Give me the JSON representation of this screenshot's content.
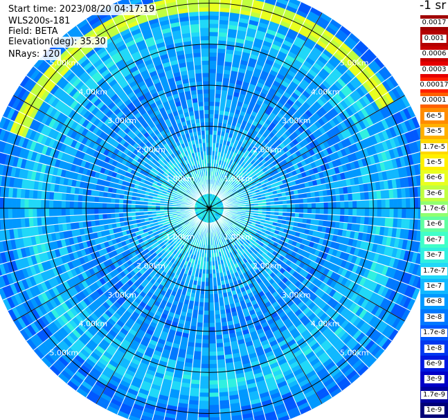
{
  "info": {
    "start_time": "Start time: 2023/08/20 04:17:19",
    "device": "WLS200s-181",
    "field": "Field: BETA",
    "elevation": "Elevation(deg): 35.30",
    "nrays": "NRays: 120"
  },
  "colorbar": {
    "title": "-1 sr",
    "entries": [
      {
        "label": "0.0017",
        "color": "#a00000"
      },
      {
        "label": "0.001",
        "color": "#b40000"
      },
      {
        "label": "0.0006",
        "color": "#c80000"
      },
      {
        "label": "0.0003",
        "color": "#e60000"
      },
      {
        "label": "0.00017",
        "color": "#ff2000"
      },
      {
        "label": "0.0001",
        "color": "#ff6000"
      },
      {
        "label": "6e-5",
        "color": "#ff8c00"
      },
      {
        "label": "3e-5",
        "color": "#ffb000"
      },
      {
        "label": "1.7e-5",
        "color": "#ffd800"
      },
      {
        "label": "1e-5",
        "color": "#fff000"
      },
      {
        "label": "6e-6",
        "color": "#e8ff20"
      },
      {
        "label": "3e-6",
        "color": "#c0ff40"
      },
      {
        "label": "1.7e-6",
        "color": "#90ff70"
      },
      {
        "label": "1e-6",
        "color": "#60ffa0"
      },
      {
        "label": "6e-7",
        "color": "#40ffc8"
      },
      {
        "label": "3e-7",
        "color": "#30f0e0"
      },
      {
        "label": "1.7e-7",
        "color": "#20d8f8"
      },
      {
        "label": "1e-7",
        "color": "#10b8ff"
      },
      {
        "label": "6e-8",
        "color": "#0098ff"
      },
      {
        "label": "3e-8",
        "color": "#0078ff"
      },
      {
        "label": "1.7e-8",
        "color": "#0058ff"
      },
      {
        "label": "1e-8",
        "color": "#0038f0"
      },
      {
        "label": "6e-9",
        "color": "#0018e0"
      },
      {
        "label": "3e-9",
        "color": "#0000c8"
      },
      {
        "label": "1.7e-9",
        "color": "#0000a0"
      },
      {
        "label": "1e-9",
        "color": "#000078"
      }
    ]
  },
  "chart_data": {
    "type": "heatmap",
    "projection": "polar-ppi",
    "field": "BETA",
    "elevation_deg": 35.3,
    "nrays": 120,
    "range_max_km": 5.5,
    "range_rings": [
      {
        "r": 1,
        "label": "1.00km"
      },
      {
        "r": 2,
        "label": "2.00km"
      },
      {
        "r": 3,
        "label": "3.00km"
      },
      {
        "r": 4,
        "label": "4.00km"
      },
      {
        "r": 5,
        "label": "5.00km"
      }
    ],
    "azimuth_lines_deg": [
      0,
      30,
      60,
      90,
      120,
      150,
      180,
      210,
      240,
      270,
      300,
      330
    ],
    "radial_profile": [
      {
        "r": 0.0,
        "level": 15.5
      },
      {
        "r": 1.0,
        "level": 16.0
      },
      {
        "r": 2.0,
        "level": 17.8
      },
      {
        "r": 3.0,
        "level": 18.3
      },
      {
        "r": 3.8,
        "level": 17.6
      },
      {
        "r": 4.4,
        "level": 16.3
      },
      {
        "r": 5.0,
        "level": 18.5
      },
      {
        "r": 5.5,
        "level": 19.0
      }
    ],
    "bright_arc": {
      "az_from_deg": 290,
      "az_to_deg": 60,
      "r_from_km": 4.85,
      "r_to_km": 5.15,
      "level": 10.5
    },
    "grid": true
  }
}
